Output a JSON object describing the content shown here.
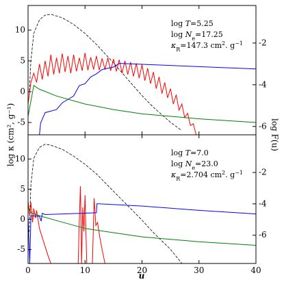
{
  "chart_data": [
    {
      "type": "line",
      "xlim": [
        0,
        40
      ],
      "xticks": [
        0,
        10,
        20,
        30,
        40
      ],
      "xtick_labels": false,
      "ylim": [
        -7,
        14
      ],
      "yticks": [
        -5,
        0,
        5,
        10
      ],
      "y2lim": [
        -6.4,
        -0.2
      ],
      "y2ticks": [
        -6,
        -4,
        -2
      ],
      "ylabel": "log κ (cm², g⁻¹)",
      "y2label": "log F(u)",
      "annotation": [
        [
          {
            "t": "log "
          },
          {
            "t": "T",
            "s": "i"
          },
          {
            "t": "=5.25"
          }
        ],
        [
          {
            "t": "log "
          },
          {
            "t": "N",
            "s": "i"
          },
          {
            "t": "e",
            "s": "sub"
          },
          {
            "t": "=17.25"
          }
        ],
        [
          {
            "t": "κ",
            "s": "i"
          },
          {
            "t": "R",
            "s": "sub"
          },
          {
            "t": "=147.3 cm"
          },
          {
            "t": "2",
            "s": "sup"
          },
          {
            "t": ". g"
          },
          {
            "t": "−1",
            "s": "sup"
          }
        ]
      ],
      "series": [
        {
          "color": "#000000",
          "dash": true,
          "axis": "y2",
          "x": [
            0.2,
            0.5,
            1,
            2,
            3,
            4,
            6,
            8,
            10,
            12,
            15,
            18,
            20,
            22,
            25,
            27
          ],
          "values": [
            -4.5,
            -2.85,
            -1.54,
            -0.89,
            -0.66,
            -0.62,
            -0.79,
            -1.11,
            -1.54,
            -2.07,
            -2.95,
            -3.9,
            -4.52,
            -5.08,
            -5.8,
            -6.2
          ]
        },
        {
          "color": "#ff0000",
          "x": [
            0,
            0.5,
            1,
            1.5,
            2,
            2.5,
            3,
            3.5,
            4,
            4.5,
            5,
            5.5,
            6,
            6.5,
            7,
            7.5,
            8,
            8.5,
            9,
            9.5,
            10,
            10.5,
            11,
            11.5,
            12,
            12.5,
            13,
            13.5,
            14,
            14.5,
            15,
            15.5,
            16,
            16.5,
            17,
            17.5,
            18,
            18.5,
            19,
            19.5,
            20,
            20.5,
            21,
            21.5,
            22,
            22.5,
            23,
            23.5,
            24,
            24.5,
            25,
            25.5,
            26,
            26.5,
            27,
            27.5,
            28,
            28.5,
            29,
            29.5
          ],
          "values": [
            -2,
            1.5,
            3.0,
            1.5,
            4.5,
            2.0,
            5.0,
            2.5,
            6.0,
            2.8,
            5.5,
            3.0,
            6.2,
            3.2,
            5.8,
            3.0,
            6.0,
            3.3,
            5.5,
            3.4,
            6.3,
            3.5,
            5.6,
            3.6,
            5.8,
            3.5,
            5.4,
            3.6,
            5.5,
            3.4,
            5.3,
            3.3,
            5.2,
            3.0,
            5.0,
            2.8,
            4.8,
            2.5,
            4.6,
            2.2,
            4.4,
            1.8,
            3.8,
            1.3,
            3.2,
            0.5,
            2.4,
            -0.3,
            1.5,
            -1.0,
            0.5,
            -2.0,
            -0.5,
            -3.0,
            -2.0,
            -4.2,
            -3.5,
            -5.5,
            -5.2,
            -7
          ]
        },
        {
          "color": "#0000ff",
          "x": [
            2,
            2.2,
            3,
            5,
            6,
            8,
            9,
            10,
            11,
            12,
            13,
            14,
            15,
            16,
            40
          ],
          "values": [
            -7,
            -5.1,
            -3.4,
            -2.9,
            -1.8,
            -0.7,
            1.0,
            1.3,
            2.4,
            2.9,
            3.6,
            3.8,
            4.0,
            4.6,
            3.7
          ]
        },
        {
          "color": "#008000",
          "x": [
            0,
            1,
            2,
            5,
            10,
            15,
            20,
            30,
            40
          ],
          "values": [
            -4,
            1.0,
            0.4,
            -0.7,
            -2.0,
            -2.9,
            -3.6,
            -4.4,
            -5.0
          ]
        }
      ]
    },
    {
      "type": "line",
      "xlim": [
        0,
        40
      ],
      "xticks": [
        0,
        10,
        20,
        30,
        40
      ],
      "xtick_labels": true,
      "xlabel": "u",
      "ylim": [
        -7.3,
        14
      ],
      "yticks": [
        -5,
        0,
        5,
        10
      ],
      "y2lim": [
        -7.8,
        0.4
      ],
      "y2ticks": [
        -6,
        -4,
        -2
      ],
      "annotation": [
        [
          {
            "t": "log "
          },
          {
            "t": "T",
            "s": "i"
          },
          {
            "t": "=7.0"
          }
        ],
        [
          {
            "t": "log "
          },
          {
            "t": "N",
            "s": "i"
          },
          {
            "t": "e",
            "s": "sub"
          },
          {
            "t": "=23.0"
          }
        ],
        [
          {
            "t": "κ",
            "s": "i"
          },
          {
            "t": "R",
            "s": "sub"
          },
          {
            "t": "=2.704 cm"
          },
          {
            "t": "2",
            "s": "sup"
          },
          {
            "t": ". g"
          },
          {
            "t": "−1",
            "s": "sup"
          }
        ]
      ],
      "series": [
        {
          "color": "#000000",
          "dash": true,
          "axis": "y2",
          "x": [
            0.2,
            0.5,
            1,
            2,
            3,
            4,
            6,
            8,
            10,
            12,
            15,
            18,
            20,
            22,
            25,
            27
          ],
          "values": [
            -5.8,
            -2.8,
            -1.1,
            -0.4,
            -0.2,
            -0.26,
            -0.52,
            -0.96,
            -1.48,
            -2.09,
            -3.2,
            -4.3,
            -5.04,
            -5.83,
            -6.9,
            -7.8
          ]
        },
        {
          "color": "#ff0000",
          "x": [
            0,
            0.3,
            0.5,
            0.8,
            1.0,
            1.3,
            1.5,
            2.0,
            2.5,
            3.0,
            3.5,
            4.0,
            4.5,
            8.8,
            9.0,
            9.2,
            9.4,
            9.6,
            9.8,
            10.0,
            10.3,
            10.8,
            11.3,
            11.6,
            11.9,
            12.2,
            12.6,
            13.0,
            13.5
          ],
          "values": [
            3.0,
            0.5,
            2.8,
            -0.5,
            1.8,
            0.2,
            1.5,
            -1.5,
            -3,
            -4.5,
            -6,
            -7.3,
            null,
            -7.3,
            0,
            5.5,
            -7.3,
            2,
            -2,
            4.0,
            -7.3,
            null,
            -7.3,
            3.5,
            -1,
            -0.5,
            -3,
            -5,
            -7.3
          ]
        },
        {
          "color": "#0000ff",
          "x": [
            0,
            0.3,
            0.5,
            2,
            2.3,
            2.5,
            3,
            12,
            12.1,
            20,
            30,
            40
          ],
          "values": [
            0.5,
            -7.3,
            0.6,
            0.5,
            -0.3,
            1.0,
            0.8,
            1.1,
            2.6,
            2.2,
            1.5,
            0.9
          ]
        },
        {
          "color": "#008000",
          "x": [
            0,
            0.5,
            2,
            5,
            10,
            15,
            20,
            30,
            40
          ],
          "values": [
            2.2,
            1.1,
            0.6,
            -0.2,
            -1.5,
            -2.2,
            -2.9,
            -3.7,
            -4.3
          ]
        }
      ]
    }
  ]
}
